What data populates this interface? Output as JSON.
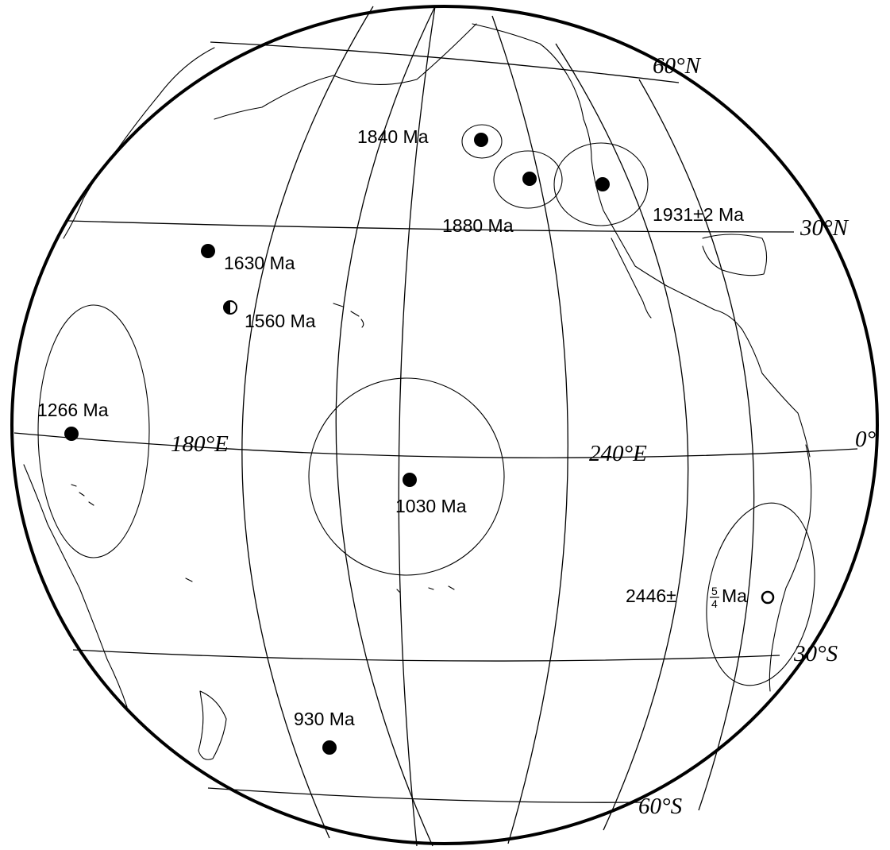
{
  "graticule_labels": {
    "lat_60n": "60°N",
    "lat_30n": "30°N",
    "lat_0": "0°",
    "lat_30s": "30°S",
    "lat_60s": "60°S",
    "lon_180e": "180°E",
    "lon_240e": "240°E"
  },
  "poles": [
    {
      "id": "p1840",
      "label": "1840 Ma",
      "marker": "filled",
      "lat": 44,
      "lon": 232
    },
    {
      "id": "p1880",
      "label": "1880 Ma",
      "marker": "filled",
      "lat": 37,
      "lon": 238
    },
    {
      "id": "p1931",
      "label": "1931±2 Ma",
      "marker": "filled",
      "lat": 37,
      "lon": 247
    },
    {
      "id": "p1630",
      "label": "1630 Ma",
      "marker": "filled",
      "lat": 28,
      "lon": 196
    },
    {
      "id": "p1560",
      "label": "1560 Ma",
      "marker": "half-filled",
      "lat": 18,
      "lon": 198
    },
    {
      "id": "p1266",
      "label": "1266 Ma",
      "marker": "filled",
      "lat": 1,
      "lon": 165
    },
    {
      "id": "p1030",
      "label": "1030 Ma",
      "marker": "filled",
      "lat": -5,
      "lon": 222
    },
    {
      "id": "p2446",
      "label": "2446±",
      "label_sup": "5",
      "label_sub": "4",
      "label_unit": "Ma",
      "marker": "open",
      "lat": -22,
      "lon": 283
    },
    {
      "id": "p930",
      "label": "930 Ma",
      "marker": "filled",
      "lat": -48,
      "lon": 213
    }
  ]
}
